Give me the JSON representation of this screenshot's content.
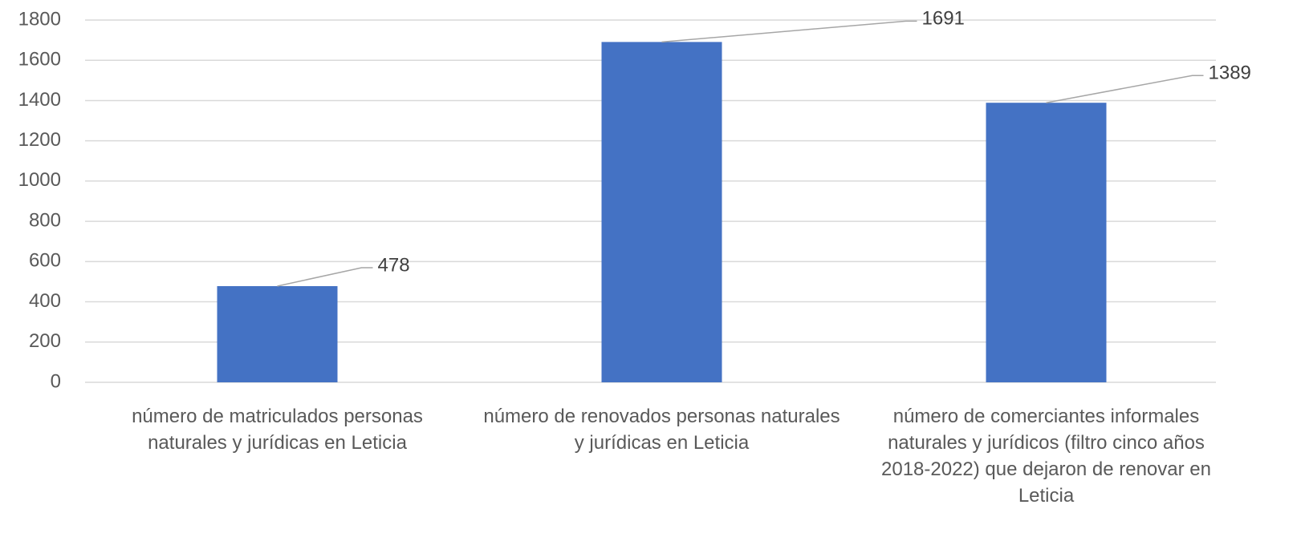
{
  "chart_data": {
    "type": "bar",
    "categories": [
      "número de matriculados personas naturales y jurídicas en Leticia",
      "número de renovados personas naturales y jurídicas en Leticia",
      "número de comerciantes informales naturales y jurídicos (filtro cinco años 2018-2022) que dejaron de renovar en Leticia"
    ],
    "values": [
      478,
      1691,
      1389
    ],
    "color": "#4472c4",
    "ylim": [
      0,
      1800
    ],
    "yticks": [
      0,
      200,
      400,
      600,
      800,
      1000,
      1200,
      1400,
      1600,
      1800
    ],
    "grid": true
  }
}
